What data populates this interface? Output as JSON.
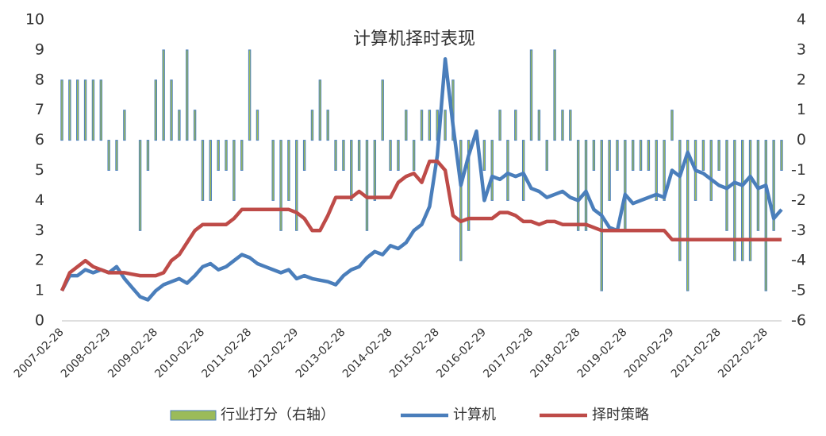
{
  "chart_data": {
    "type": "line",
    "title": "计算机择时表现",
    "categories": [
      "2007-02-28",
      null,
      null,
      null,
      null,
      null,
      "2008-02-29",
      null,
      null,
      null,
      null,
      null,
      "2009-02-28",
      null,
      null,
      null,
      null,
      null,
      "2010-02-28",
      null,
      null,
      null,
      null,
      null,
      "2011-02-28",
      null,
      null,
      null,
      null,
      null,
      "2012-02-29",
      null,
      null,
      null,
      null,
      null,
      "2013-02-28",
      null,
      null,
      null,
      null,
      null,
      "2014-02-28",
      null,
      null,
      null,
      null,
      null,
      "2015-02-28",
      null,
      null,
      null,
      null,
      null,
      "2016-02-29",
      null,
      null,
      null,
      null,
      null,
      "2017-02-28",
      null,
      null,
      null,
      null,
      null,
      "2018-02-28",
      null,
      null,
      null,
      null,
      null,
      "2019-02-28",
      null,
      null,
      null,
      null,
      null,
      "2020-02-29",
      null,
      null,
      null,
      null,
      null,
      "2021-02-28",
      null,
      null,
      null,
      null,
      null,
      "2022-02-28",
      null,
      null
    ],
    "series": [
      {
        "name": "行业打分（右轴）",
        "type": "bar",
        "axis": "y2",
        "color": "#9bbb59",
        "edge": "#4f81bd",
        "values": [
          2,
          2,
          2,
          2,
          2,
          2,
          -1,
          -1,
          1,
          0,
          -3,
          -1,
          2,
          3,
          2,
          1,
          3,
          1,
          -2,
          -2,
          -1,
          -1,
          -2,
          -1,
          3,
          1,
          0,
          -2,
          -3,
          -2,
          -3,
          -1,
          1,
          2,
          1,
          -1,
          -1,
          -2,
          -1,
          -3,
          -2,
          2,
          -1,
          -1,
          1,
          -1,
          1,
          1,
          1,
          1,
          2,
          -4,
          -3,
          0,
          -1,
          -2,
          1,
          -2,
          1,
          -2,
          3,
          1,
          -1,
          3,
          1,
          1,
          -3,
          -3,
          -1,
          -5,
          -2,
          -1,
          -3,
          -1,
          -1,
          -1,
          -2,
          -2,
          1,
          -4,
          -5,
          -2,
          -1,
          -2,
          -1,
          -3,
          -4,
          -4,
          -4,
          -3,
          -5,
          -3,
          -1
        ]
      },
      {
        "name": "计算机",
        "type": "line",
        "color": "#4a7ebb",
        "values": [
          1.0,
          1.5,
          1.5,
          1.7,
          1.6,
          1.7,
          1.6,
          1.8,
          1.4,
          1.1,
          0.8,
          0.7,
          1.0,
          1.2,
          1.3,
          1.4,
          1.25,
          1.5,
          1.8,
          1.9,
          1.7,
          1.8,
          2.0,
          2.2,
          2.1,
          1.9,
          1.8,
          1.7,
          1.6,
          1.7,
          1.4,
          1.5,
          1.4,
          1.35,
          1.3,
          1.2,
          1.5,
          1.7,
          1.8,
          2.1,
          2.3,
          2.2,
          2.5,
          2.4,
          2.6,
          3.0,
          3.2,
          3.8,
          5.5,
          8.7,
          6.5,
          4.5,
          5.5,
          6.3,
          4.0,
          4.8,
          4.7,
          4.9,
          4.8,
          4.9,
          4.4,
          4.3,
          4.1,
          4.2,
          4.3,
          4.1,
          4.0,
          4.3,
          3.7,
          3.5,
          3.1,
          3.0,
          4.2,
          3.9,
          4.0,
          4.1,
          4.2,
          4.1,
          5.0,
          4.8,
          5.6,
          5.0,
          4.9,
          4.7,
          4.5,
          4.4,
          4.6,
          4.5,
          4.8,
          4.4,
          4.5,
          3.4,
          3.7
        ]
      },
      {
        "name": "择时策略",
        "type": "line",
        "color": "#be4b48",
        "values": [
          1.0,
          1.6,
          1.8,
          2.0,
          1.8,
          1.7,
          1.6,
          1.6,
          1.6,
          1.55,
          1.5,
          1.5,
          1.5,
          1.6,
          2.0,
          2.2,
          2.6,
          3.0,
          3.2,
          3.2,
          3.2,
          3.2,
          3.4,
          3.7,
          3.7,
          3.7,
          3.7,
          3.7,
          3.7,
          3.7,
          3.6,
          3.4,
          3.0,
          3.0,
          3.5,
          4.1,
          4.1,
          4.1,
          4.3,
          4.1,
          4.1,
          4.1,
          4.1,
          4.6,
          4.8,
          4.9,
          4.6,
          5.3,
          5.3,
          5.0,
          3.5,
          3.3,
          3.4,
          3.4,
          3.4,
          3.4,
          3.6,
          3.6,
          3.5,
          3.3,
          3.3,
          3.2,
          3.3,
          3.3,
          3.2,
          3.2,
          3.2,
          3.2,
          3.1,
          3.0,
          3.0,
          3.0,
          3.0,
          3.0,
          3.0,
          3.0,
          3.0,
          3.0,
          2.7,
          2.7,
          2.7,
          2.7,
          2.7,
          2.7,
          2.7,
          2.7,
          2.7,
          2.7,
          2.7,
          2.7,
          2.7,
          2.7,
          2.7
        ]
      }
    ],
    "ylim": [
      0,
      10
    ],
    "yticks": [
      0,
      1,
      2,
      3,
      4,
      5,
      6,
      7,
      8,
      9,
      10
    ],
    "y2lim": [
      -6,
      4
    ],
    "y2ticks": [
      -6,
      -5,
      -4,
      -3,
      -2,
      -1,
      0,
      1,
      2,
      3,
      4
    ],
    "grid": false,
    "legend": "bottom"
  }
}
